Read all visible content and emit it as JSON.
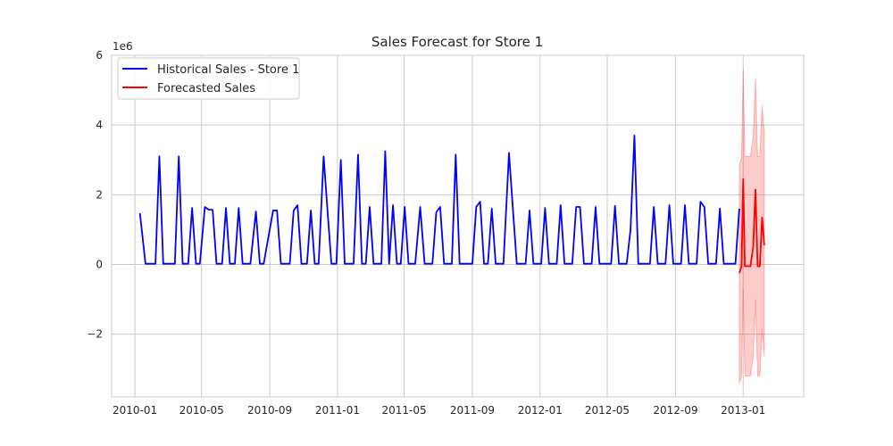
{
  "chart_data": {
    "type": "line",
    "title": "Sales Forecast for Store 1",
    "xlabel": "",
    "ylabel": "",
    "y_offset_label": "1e6",
    "y_scale": 1000000,
    "grid": true,
    "legend_position": "top-left",
    "x_range": [
      "2009-11-20",
      "2013-04-20"
    ],
    "y_range": [
      -3.8,
      6.0
    ],
    "x_ticks": [
      {
        "date": "2010-01-01",
        "label": "2010-01"
      },
      {
        "date": "2010-05-01",
        "label": "2010-05"
      },
      {
        "date": "2010-09-01",
        "label": "2010-09"
      },
      {
        "date": "2011-01-01",
        "label": "2011-01"
      },
      {
        "date": "2011-05-01",
        "label": "2011-05"
      },
      {
        "date": "2011-09-01",
        "label": "2011-09"
      },
      {
        "date": "2012-01-01",
        "label": "2012-01"
      },
      {
        "date": "2012-05-01",
        "label": "2012-05"
      },
      {
        "date": "2012-09-01",
        "label": "2012-09"
      },
      {
        "date": "2013-01-01",
        "label": "2013-01"
      }
    ],
    "y_ticks": [
      {
        "value": -2,
        "label": "−2"
      },
      {
        "value": 0,
        "label": "0"
      },
      {
        "value": 2,
        "label": "2"
      },
      {
        "value": 4,
        "label": "4"
      },
      {
        "value": 6,
        "label": "6"
      }
    ],
    "series": [
      {
        "name": "Historical Sales - Store 1",
        "color": "#0000ff",
        "points": [
          [
            "2010-01-10",
            1.47
          ],
          [
            "2010-01-20",
            0.02
          ],
          [
            "2010-01-30",
            0.02
          ],
          [
            "2010-02-07",
            0.02
          ],
          [
            "2010-02-14",
            3.1
          ],
          [
            "2010-02-21",
            0.02
          ],
          [
            "2010-03-01",
            0.02
          ],
          [
            "2010-03-14",
            0.02
          ],
          [
            "2010-03-21",
            3.1
          ],
          [
            "2010-03-28",
            0.02
          ],
          [
            "2010-04-07",
            0.02
          ],
          [
            "2010-04-14",
            1.62
          ],
          [
            "2010-04-21",
            0.02
          ],
          [
            "2010-04-28",
            0.02
          ],
          [
            "2010-05-07",
            1.65
          ],
          [
            "2010-05-14",
            1.57
          ],
          [
            "2010-05-21",
            1.57
          ],
          [
            "2010-05-28",
            0.02
          ],
          [
            "2010-06-07",
            0.02
          ],
          [
            "2010-06-14",
            1.62
          ],
          [
            "2010-06-21",
            0.02
          ],
          [
            "2010-06-30",
            0.02
          ],
          [
            "2010-07-07",
            1.62
          ],
          [
            "2010-07-14",
            0.02
          ],
          [
            "2010-07-28",
            0.02
          ],
          [
            "2010-08-07",
            1.52
          ],
          [
            "2010-08-14",
            0.02
          ],
          [
            "2010-08-21",
            0.02
          ],
          [
            "2010-09-07",
            1.55
          ],
          [
            "2010-09-14",
            1.55
          ],
          [
            "2010-09-21",
            0.02
          ],
          [
            "2010-10-07",
            0.02
          ],
          [
            "2010-10-14",
            1.55
          ],
          [
            "2010-10-21",
            1.7
          ],
          [
            "2010-10-28",
            0.02
          ],
          [
            "2010-11-07",
            0.02
          ],
          [
            "2010-11-14",
            1.55
          ],
          [
            "2010-11-21",
            0.02
          ],
          [
            "2010-11-28",
            0.02
          ],
          [
            "2010-12-07",
            3.1
          ],
          [
            "2010-12-14",
            1.55
          ],
          [
            "2010-12-21",
            0.02
          ],
          [
            "2010-12-30",
            0.02
          ],
          [
            "2011-01-07",
            3.0
          ],
          [
            "2011-01-14",
            0.02
          ],
          [
            "2011-01-30",
            0.02
          ],
          [
            "2011-02-07",
            3.15
          ],
          [
            "2011-02-14",
            0.02
          ],
          [
            "2011-02-21",
            0.02
          ],
          [
            "2011-02-28",
            1.65
          ],
          [
            "2011-03-07",
            0.02
          ],
          [
            "2011-03-14",
            0.02
          ],
          [
            "2011-03-21",
            0.02
          ],
          [
            "2011-03-28",
            3.25
          ],
          [
            "2011-04-04",
            0.02
          ],
          [
            "2011-04-11",
            1.7
          ],
          [
            "2011-04-18",
            0.02
          ],
          [
            "2011-04-25",
            0.02
          ],
          [
            "2011-05-02",
            1.65
          ],
          [
            "2011-05-09",
            0.02
          ],
          [
            "2011-05-21",
            0.02
          ],
          [
            "2011-05-30",
            1.65
          ],
          [
            "2011-06-07",
            0.02
          ],
          [
            "2011-06-21",
            0.02
          ],
          [
            "2011-06-28",
            1.5
          ],
          [
            "2011-07-05",
            1.65
          ],
          [
            "2011-07-12",
            0.02
          ],
          [
            "2011-07-19",
            0.02
          ],
          [
            "2011-07-26",
            0.02
          ],
          [
            "2011-08-02",
            3.15
          ],
          [
            "2011-08-09",
            0.02
          ],
          [
            "2011-08-16",
            0.02
          ],
          [
            "2011-08-23",
            0.02
          ],
          [
            "2011-09-01",
            0.02
          ],
          [
            "2011-09-08",
            1.65
          ],
          [
            "2011-09-15",
            1.8
          ],
          [
            "2011-09-22",
            0.02
          ],
          [
            "2011-09-29",
            0.02
          ],
          [
            "2011-10-06",
            1.6
          ],
          [
            "2011-10-13",
            0.02
          ],
          [
            "2011-10-20",
            0.02
          ],
          [
            "2011-10-27",
            0.02
          ],
          [
            "2011-11-06",
            3.2
          ],
          [
            "2011-11-13",
            1.6
          ],
          [
            "2011-11-20",
            0.02
          ],
          [
            "2011-11-27",
            0.02
          ],
          [
            "2011-12-06",
            0.02
          ],
          [
            "2011-12-13",
            1.55
          ],
          [
            "2011-12-20",
            0.02
          ],
          [
            "2011-12-27",
            0.02
          ],
          [
            "2012-01-03",
            0.02
          ],
          [
            "2012-01-10",
            1.62
          ],
          [
            "2012-01-17",
            0.02
          ],
          [
            "2012-01-24",
            0.02
          ],
          [
            "2012-01-31",
            0.02
          ],
          [
            "2012-02-07",
            1.7
          ],
          [
            "2012-02-14",
            0.02
          ],
          [
            "2012-02-21",
            0.02
          ],
          [
            "2012-02-28",
            0.02
          ],
          [
            "2012-03-06",
            1.65
          ],
          [
            "2012-03-13",
            1.65
          ],
          [
            "2012-03-20",
            0.02
          ],
          [
            "2012-03-27",
            0.02
          ],
          [
            "2012-04-03",
            0.02
          ],
          [
            "2012-04-10",
            1.65
          ],
          [
            "2012-04-17",
            0.02
          ],
          [
            "2012-04-24",
            0.02
          ],
          [
            "2012-05-01",
            0.02
          ],
          [
            "2012-05-08",
            0.02
          ],
          [
            "2012-05-15",
            1.68
          ],
          [
            "2012-05-22",
            0.02
          ],
          [
            "2012-05-29",
            0.02
          ],
          [
            "2012-06-05",
            0.02
          ],
          [
            "2012-06-12",
            1.0
          ],
          [
            "2012-06-19",
            3.7
          ],
          [
            "2012-06-26",
            0.02
          ],
          [
            "2012-07-03",
            0.02
          ],
          [
            "2012-07-10",
            0.02
          ],
          [
            "2012-07-17",
            0.02
          ],
          [
            "2012-07-24",
            1.65
          ],
          [
            "2012-07-31",
            0.02
          ],
          [
            "2012-08-07",
            0.02
          ],
          [
            "2012-08-14",
            0.02
          ],
          [
            "2012-08-21",
            1.7
          ],
          [
            "2012-08-28",
            0.02
          ],
          [
            "2012-09-04",
            0.02
          ],
          [
            "2012-09-11",
            0.02
          ],
          [
            "2012-09-18",
            1.7
          ],
          [
            "2012-09-25",
            0.02
          ],
          [
            "2012-10-02",
            0.02
          ],
          [
            "2012-10-09",
            0.02
          ],
          [
            "2012-10-16",
            1.8
          ],
          [
            "2012-10-23",
            1.65
          ],
          [
            "2012-10-30",
            0.02
          ],
          [
            "2012-11-06",
            0.02
          ],
          [
            "2012-11-13",
            0.02
          ],
          [
            "2012-11-20",
            1.6
          ],
          [
            "2012-11-27",
            0.02
          ],
          [
            "2012-12-04",
            0.02
          ],
          [
            "2012-12-11",
            0.02
          ],
          [
            "2012-12-18",
            0.02
          ],
          [
            "2012-12-25",
            1.6
          ]
        ]
      },
      {
        "name": "Forecasted Sales",
        "color": "#ff0000",
        "points": [
          [
            "2012-12-25",
            -0.25
          ],
          [
            "2012-12-29",
            -0.05
          ],
          [
            "2013-01-01",
            2.45
          ],
          [
            "2013-01-04",
            -0.05
          ],
          [
            "2013-01-09",
            -0.05
          ],
          [
            "2013-01-14",
            -0.05
          ],
          [
            "2013-01-19",
            0.5
          ],
          [
            "2013-01-23",
            2.15
          ],
          [
            "2013-01-27",
            -0.05
          ],
          [
            "2013-01-31",
            -0.05
          ],
          [
            "2013-02-04",
            1.35
          ],
          [
            "2013-02-08",
            0.55
          ]
        ],
        "interval": {
          "color": "#ff0000",
          "opacity": 0.2,
          "upper": [
            [
              "2012-12-25",
              2.85
            ],
            [
              "2012-12-29",
              3.05
            ],
            [
              "2013-01-01",
              5.6
            ],
            [
              "2013-01-04",
              3.1
            ],
            [
              "2013-01-09",
              3.1
            ],
            [
              "2013-01-14",
              3.1
            ],
            [
              "2013-01-19",
              3.65
            ],
            [
              "2013-01-23",
              5.35
            ],
            [
              "2013-01-27",
              3.1
            ],
            [
              "2013-01-31",
              3.1
            ],
            [
              "2013-02-04",
              4.55
            ],
            [
              "2013-02-08",
              3.75
            ]
          ],
          "lower": [
            [
              "2012-12-25",
              -3.4
            ],
            [
              "2012-12-29",
              -3.2
            ],
            [
              "2013-01-01",
              -0.7
            ],
            [
              "2013-01-04",
              -3.2
            ],
            [
              "2013-01-09",
              -3.2
            ],
            [
              "2013-01-14",
              -3.2
            ],
            [
              "2013-01-19",
              -2.65
            ],
            [
              "2013-01-23",
              -1.0
            ],
            [
              "2013-01-27",
              -3.2
            ],
            [
              "2013-01-31",
              -3.2
            ],
            [
              "2013-02-04",
              -1.85
            ],
            [
              "2013-02-08",
              -2.65
            ]
          ]
        }
      }
    ]
  }
}
